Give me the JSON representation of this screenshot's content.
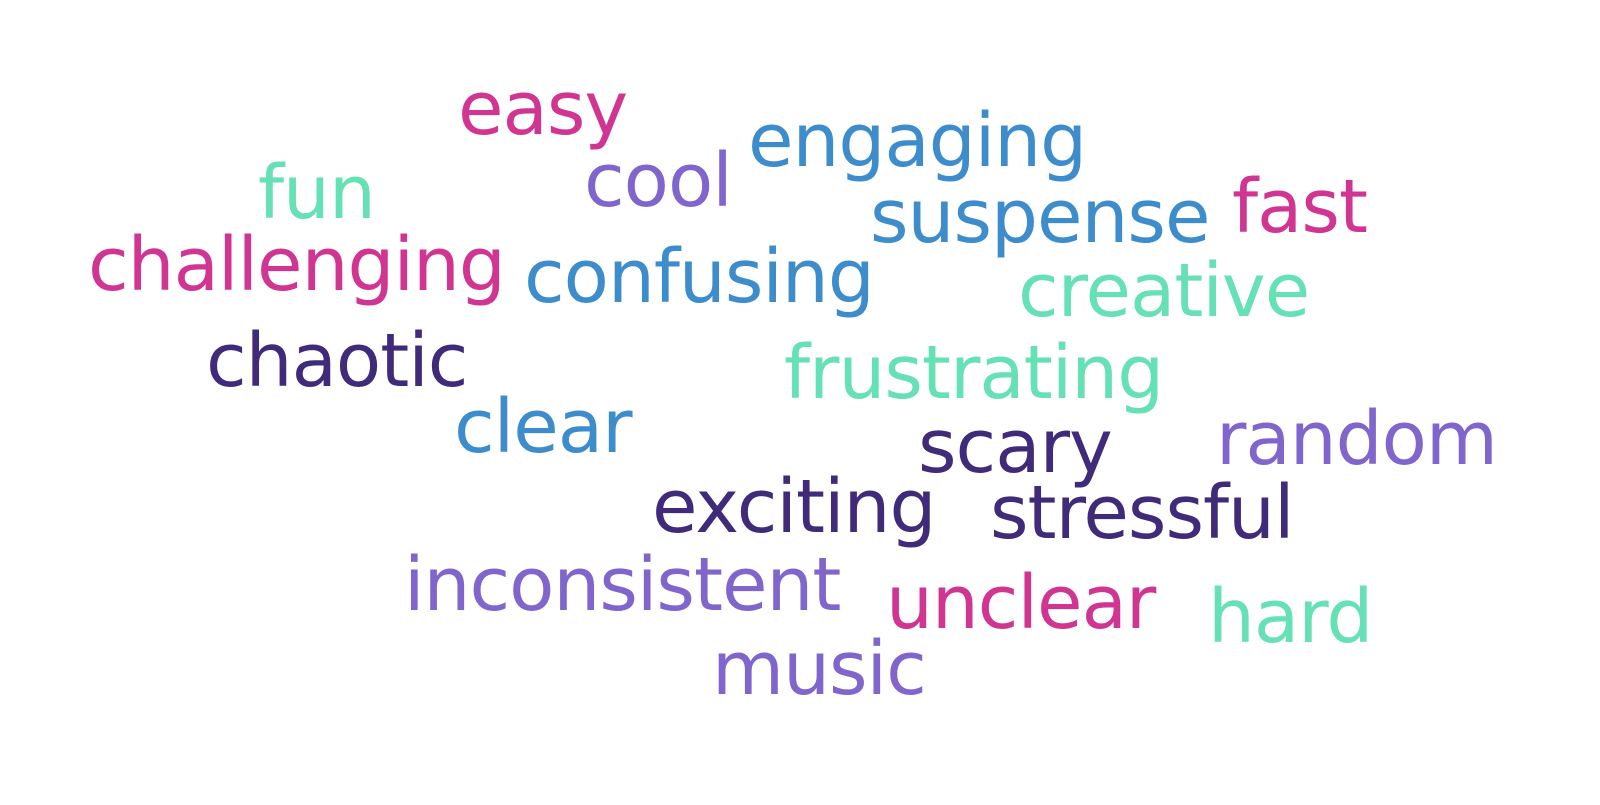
{
  "palette": {
    "magenta": "#d13592",
    "blue": "#3d8ccc",
    "mint": "#66e0b5",
    "purple": "#8066cc",
    "indigo": "#402b7a"
  },
  "words": [
    {
      "text": "easy",
      "color": "#d13592"
    },
    {
      "text": "engaging",
      "color": "#3d8ccc"
    },
    {
      "text": "fun",
      "color": "#66e0b5"
    },
    {
      "text": "cool",
      "color": "#8066cc"
    },
    {
      "text": "suspense",
      "color": "#3d8ccc"
    },
    {
      "text": "fast",
      "color": "#d13592"
    },
    {
      "text": "challenging",
      "color": "#d13592"
    },
    {
      "text": "confusing",
      "color": "#3d8ccc"
    },
    {
      "text": "creative",
      "color": "#66e0b5"
    },
    {
      "text": "chaotic",
      "color": "#402b7a"
    },
    {
      "text": "frustrating",
      "color": "#66e0b5"
    },
    {
      "text": "clear",
      "color": "#3d8ccc"
    },
    {
      "text": "scary",
      "color": "#402b7a"
    },
    {
      "text": "random",
      "color": "#8066cc"
    },
    {
      "text": "exciting",
      "color": "#402b7a"
    },
    {
      "text": "stressful",
      "color": "#402b7a"
    },
    {
      "text": "inconsistent",
      "color": "#8066cc"
    },
    {
      "text": "unclear",
      "color": "#d13592"
    },
    {
      "text": "hard",
      "color": "#66e0b5"
    },
    {
      "text": "music",
      "color": "#8066cc"
    }
  ]
}
